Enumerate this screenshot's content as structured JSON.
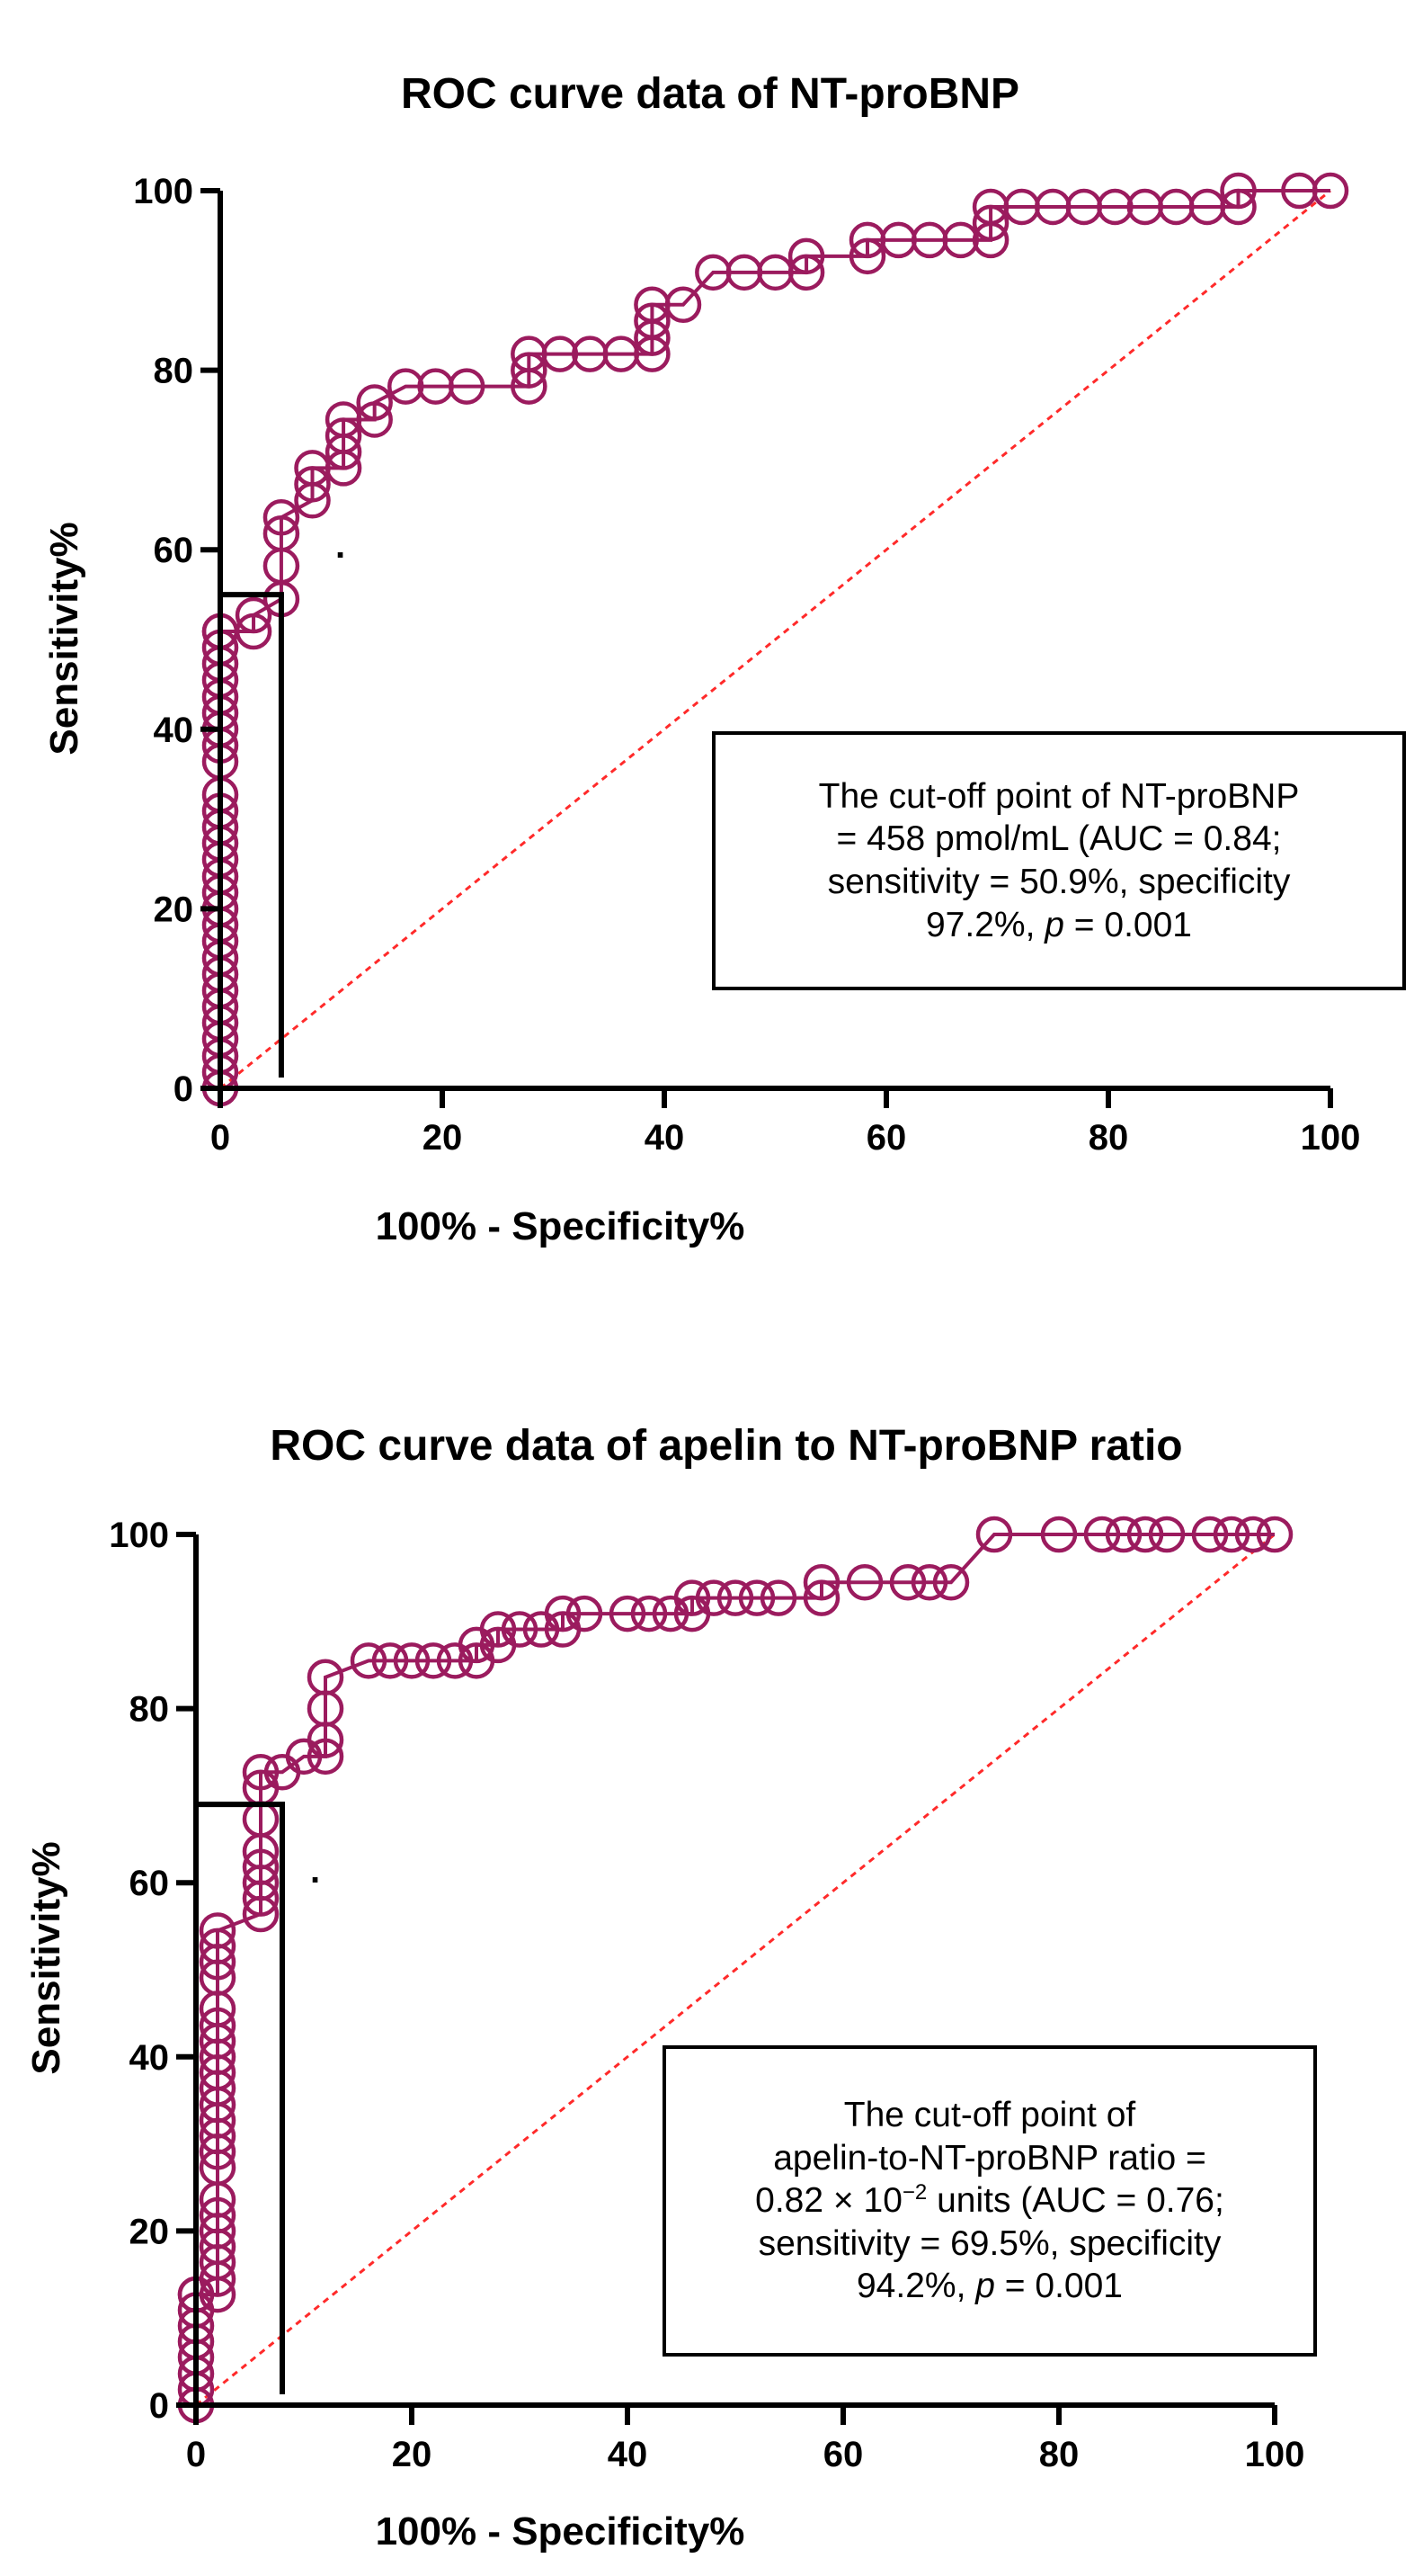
{
  "chart_data": [
    {
      "type": "line",
      "title": "ROC curve data of NT-proBNP",
      "xlabel": "100% - Specificity%",
      "ylabel": "Sensitivity%",
      "xlim": [
        0,
        100
      ],
      "ylim": [
        0,
        100
      ],
      "xticks": [
        "0",
        "20",
        "40",
        "60",
        "80",
        "100"
      ],
      "yticks": [
        "0",
        "20",
        "40",
        "60",
        "80",
        "100"
      ],
      "legend": "none",
      "colors": {
        "curve": "#9b1b5e",
        "reference": "#ff2a2a",
        "marker": "#000000"
      },
      "series": [
        {
          "name": "ROC curve",
          "x": [
            0,
            0,
            0,
            0,
            0,
            0,
            0,
            0,
            0,
            0,
            0,
            0,
            0,
            0,
            0,
            0,
            0,
            0,
            0,
            0,
            0,
            0,
            0,
            0,
            0,
            0,
            0,
            0,
            0,
            3,
            3,
            5.5,
            5.5,
            5.5,
            5.5,
            8.3,
            8.3,
            8.3,
            11.1,
            11.1,
            11.1,
            11.1,
            13.9,
            13.9,
            16.7,
            19.4,
            22.2,
            27.8,
            27.8,
            27.8,
            30.6,
            33.3,
            36.1,
            38.9,
            38.9,
            38.9,
            38.9,
            41.7,
            44.4,
            47.2,
            50,
            52.8,
            52.8,
            58.3,
            58.3,
            61.1,
            63.9,
            66.7,
            69.4,
            69.4,
            69.4,
            72.2,
            75,
            77.8,
            80.6,
            83.3,
            86.1,
            88.9,
            91.7,
            91.7,
            97.2,
            100
          ],
          "y": [
            0,
            1.8,
            3.6,
            5.5,
            7.3,
            9.1,
            10.9,
            12.7,
            14.5,
            16.4,
            18.2,
            20,
            21.8,
            23.6,
            25.5,
            27.3,
            29.1,
            30.9,
            32.7,
            36.4,
            38.2,
            40,
            41.8,
            43.6,
            45.5,
            47.3,
            49.1,
            50.9,
            50.9,
            50.9,
            52.7,
            54.5,
            58.2,
            61.8,
            63.6,
            65.5,
            67.3,
            69.1,
            69.1,
            70.9,
            72.7,
            74.5,
            74.5,
            76.4,
            78.2,
            78.2,
            78.2,
            78.2,
            80,
            81.8,
            81.8,
            81.8,
            81.8,
            81.8,
            83.6,
            85.5,
            87.3,
            87.3,
            90.9,
            90.9,
            90.9,
            90.9,
            92.7,
            92.7,
            94.5,
            94.5,
            94.5,
            94.5,
            94.5,
            96.4,
            98.2,
            98.2,
            98.2,
            98.2,
            98.2,
            98.2,
            98.2,
            98.2,
            98.2,
            100,
            100,
            100
          ]
        },
        {
          "name": "Reference line",
          "x": [
            0,
            100
          ],
          "y": [
            0,
            100
          ]
        }
      ],
      "cutoff": {
        "x": 5.5,
        "y": 55
      },
      "annotation": {
        "line1": "The cut-off point of NT-proBNP",
        "line2": "= 458 pmol/mL  (AUC = 0.84;",
        "line3": "sensitivity = 50.9%, specificity",
        "line4_pre": "97.2%, ",
        "line4_p": "p",
        "line4_post": " = 0.001"
      },
      "stray_mark": "."
    },
    {
      "type": "line",
      "title": "ROC curve data of apelin to NT-proBNP ratio",
      "xlabel": "100% - Specificity%",
      "ylabel": "Sensitivity%",
      "xlim": [
        0,
        100
      ],
      "ylim": [
        0,
        100
      ],
      "xticks": [
        "0",
        "20",
        "40",
        "60",
        "80",
        "100"
      ],
      "yticks": [
        "0",
        "20",
        "40",
        "60",
        "80",
        "100"
      ],
      "legend": "none",
      "colors": {
        "curve": "#9b1b5e",
        "reference": "#ff2a2a",
        "marker": "#000000"
      },
      "series": [
        {
          "name": "ROC curve",
          "x": [
            0,
            0,
            0,
            0,
            0,
            0,
            0,
            0,
            0,
            2,
            2,
            2,
            2,
            2,
            2,
            2,
            2,
            2,
            2,
            2,
            2,
            2,
            2,
            2,
            2,
            2,
            2,
            2,
            2,
            2,
            2,
            6,
            6,
            6,
            6,
            6,
            6,
            6,
            6,
            8,
            10,
            12,
            12,
            12,
            12,
            16,
            18,
            20,
            22,
            24,
            26,
            26,
            28,
            28,
            30,
            32,
            34,
            34,
            36,
            40,
            42,
            44,
            46,
            46,
            48,
            50,
            52,
            54,
            58,
            58,
            62,
            66,
            68,
            70,
            74,
            80,
            84,
            86,
            88,
            90,
            94,
            96,
            98,
            100
          ],
          "y": [
            0,
            1.8,
            3.6,
            5.5,
            7.3,
            9.1,
            10.9,
            12.7,
            12.7,
            12.7,
            14.5,
            16.4,
            18.2,
            20,
            21.8,
            23.6,
            27.3,
            29.1,
            30.9,
            32.7,
            34.5,
            36.4,
            38.2,
            40,
            41.8,
            43.6,
            45.5,
            49.1,
            50.9,
            52.7,
            54.5,
            56.4,
            58.2,
            60,
            61.8,
            63.6,
            67.3,
            70.9,
            72.7,
            72.7,
            74.5,
            74.5,
            76.4,
            80,
            83.6,
            85.5,
            85.5,
            85.5,
            85.5,
            85.5,
            85.5,
            87.3,
            87.3,
            89.1,
            89.1,
            89.1,
            89.1,
            90.9,
            90.9,
            90.9,
            90.9,
            90.9,
            90.9,
            92.7,
            92.7,
            92.7,
            92.7,
            92.7,
            92.7,
            94.5,
            94.5,
            94.5,
            94.5,
            94.5,
            100,
            100,
            100,
            100,
            100,
            100,
            100,
            100,
            100,
            100
          ]
        },
        {
          "name": "Reference line",
          "x": [
            0,
            100
          ],
          "y": [
            0,
            100
          ]
        }
      ],
      "cutoff": {
        "x": 8,
        "y": 69
      },
      "annotation": {
        "line1": "The cut-off point of",
        "line2": "apelin-to-NT-proBNP ratio =",
        "line3_pre": "0.82 × 10",
        "line3_sup": "−2",
        "line3_post": " units (AUC = 0.76;",
        "line4": "sensitivity = 69.5%, specificity",
        "line5_pre": "94.2%, ",
        "line5_p": "p",
        "line5_post": " = 0.001"
      },
      "stray_mark": "."
    }
  ]
}
